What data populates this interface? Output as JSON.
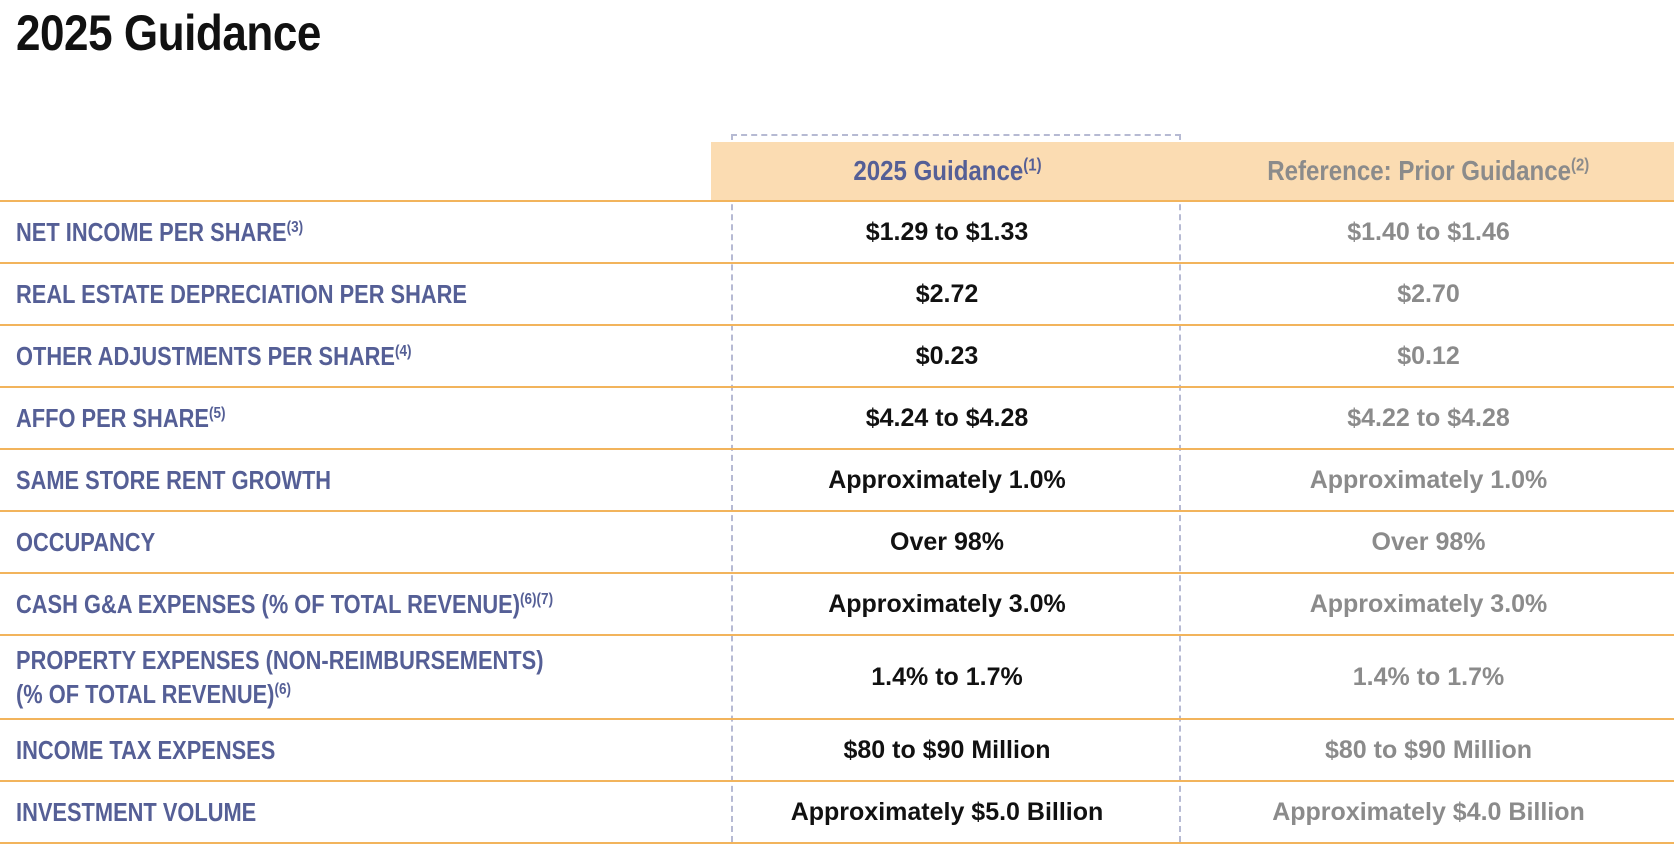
{
  "page_title": "2025 Guidance",
  "header": {
    "current_label": "2025 Guidance",
    "current_note": "(1)",
    "prior_label": "Reference:  Prior Guidance",
    "prior_note": "(2)"
  },
  "rows": [
    {
      "label": "NET INCOME PER SHARE",
      "note": "(3)",
      "current": "$1.29 to $1.33",
      "prior": "$1.40 to $1.46"
    },
    {
      "label": "REAL ESTATE DEPRECIATION PER SHARE",
      "note": "",
      "current": "$2.72",
      "prior": "$2.70"
    },
    {
      "label": "OTHER ADJUSTMENTS PER SHARE",
      "note": "(4)",
      "current": "$0.23",
      "prior": "$0.12"
    },
    {
      "label": "AFFO PER SHARE",
      "note": "(5)",
      "current": "$4.24 to $4.28",
      "prior": "$4.22 to $4.28"
    },
    {
      "label": "SAME STORE RENT GROWTH",
      "note": "",
      "current": "Approximately 1.0%",
      "prior": "Approximately 1.0%"
    },
    {
      "label": "OCCUPANCY",
      "note": "",
      "current": "Over 98%",
      "prior": "Over 98%"
    },
    {
      "label": "CASH G&A EXPENSES (% OF TOTAL REVENUE)",
      "note": "(6)(7)",
      "current": "Approximately 3.0%",
      "prior": "Approximately 3.0%"
    },
    {
      "label": "PROPERTY EXPENSES (NON-REIMBURSEMENTS)",
      "label_line2": "(% OF TOTAL REVENUE)",
      "note": "(6)",
      "current": "1.4% to 1.7%",
      "prior": "1.4% to 1.7%"
    },
    {
      "label": "INCOME TAX EXPENSES",
      "note": "",
      "current": "$80 to $90 Million",
      "prior": "$80 to $90 Million"
    },
    {
      "label": "INVESTMENT VOLUME",
      "note": "",
      "current": "Approximately $5.0 Billion",
      "prior": "Approximately $4.0 Billion"
    }
  ],
  "colors": {
    "label": "#555f96",
    "header_fill": "#fbdcb2",
    "rule": "#f2b45c",
    "prior_text": "#8b8b8b",
    "current_text": "#111111",
    "dash_border": "#b6bad3"
  }
}
